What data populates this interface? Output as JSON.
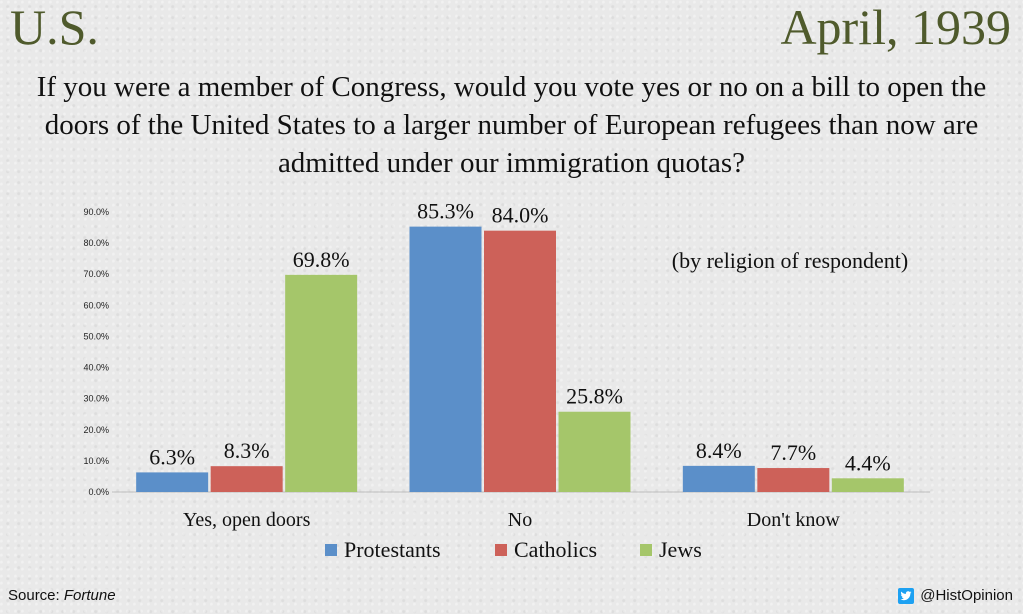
{
  "header": {
    "country": "U.S.",
    "date": "April, 1939",
    "question": "If you were a member of Congress, would you vote yes or no on a bill to open the doors of the United States to a larger number of European refugees than now are admitted under our immigration quotas?"
  },
  "footer": {
    "source_label": "Source:",
    "source_name": "Fortune",
    "handle": "@HistOpinion"
  },
  "colors": {
    "Protestants": "#5b8fc9",
    "Catholics": "#cd6159",
    "Jews": "#a5c66a",
    "title": "#4f5a2c"
  },
  "icons": {
    "social": "twitter-bird-icon"
  },
  "chart_data": {
    "type": "bar",
    "title": "",
    "annotation": "(by religion of respondent)",
    "categories": [
      "Yes, open doors",
      "No",
      "Don't know"
    ],
    "series": [
      {
        "name": "Protestants",
        "values": [
          6.3,
          85.3,
          8.4
        ],
        "labels": [
          "6.3%",
          "85.3%",
          "8.4%"
        ]
      },
      {
        "name": "Catholics",
        "values": [
          8.3,
          84.0,
          7.7
        ],
        "labels": [
          "8.3%",
          "84.0%",
          "7.7%"
        ]
      },
      {
        "name": "Jews",
        "values": [
          69.8,
          25.8,
          4.4
        ],
        "labels": [
          "69.8%",
          "25.8%",
          "4.4%"
        ]
      }
    ],
    "ylim": [
      0,
      90
    ],
    "yticks": [
      0,
      10,
      20,
      30,
      40,
      50,
      60,
      70,
      80,
      90
    ],
    "ytick_labels": [
      "0.0%",
      "10.0%",
      "20.0%",
      "30.0%",
      "40.0%",
      "50.0%",
      "60.0%",
      "70.0%",
      "80.0%",
      "90.0%"
    ],
    "xlabel": "",
    "ylabel": "",
    "grid": false,
    "legend": "bottom"
  }
}
